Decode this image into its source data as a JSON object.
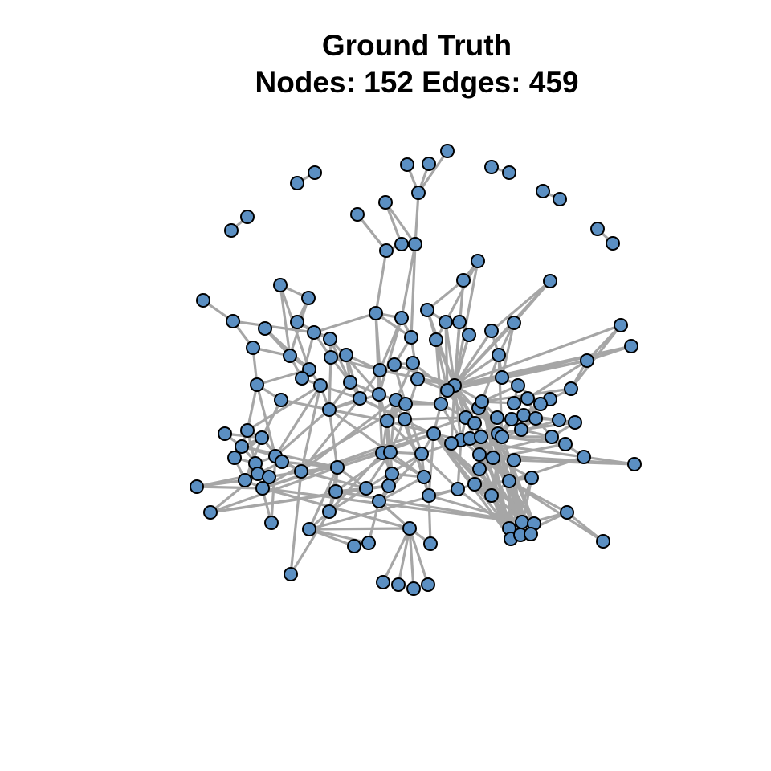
{
  "title": "Ground Truth",
  "subtitle": "Nodes: 152 Edges: 459",
  "colors": {
    "node_fill": "#5b8fc2",
    "node_stroke": "#000000",
    "edge": "#a6a6a6",
    "background": "#ffffff"
  },
  "graph": {
    "node_count": 152,
    "edge_count": 459
  }
}
